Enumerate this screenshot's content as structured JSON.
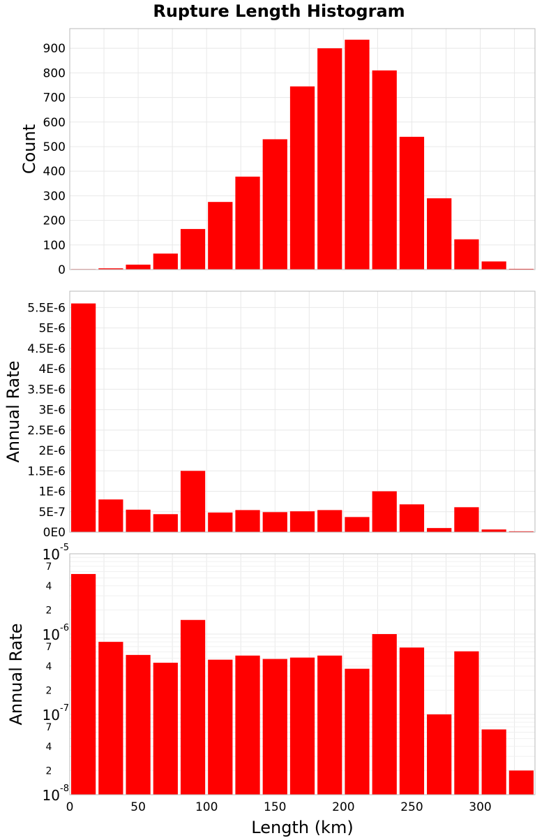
{
  "title": "Rupture Length Histogram",
  "colors": {
    "bar": "#ff0000",
    "frame": "#b8b8b8",
    "grid": "#e8e8e8"
  },
  "chart_data": [
    {
      "type": "bar",
      "title": "Rupture Length Histogram",
      "xlabel": "",
      "ylabel": "Count",
      "xlim": [
        0,
        340
      ],
      "ylim": [
        0,
        980
      ],
      "bin_width": 20,
      "x": [
        10,
        30,
        50,
        70,
        90,
        110,
        130,
        150,
        170,
        190,
        210,
        230,
        250,
        270,
        290,
        310,
        330
      ],
      "values": [
        2,
        5,
        20,
        65,
        165,
        275,
        378,
        530,
        745,
        900,
        935,
        810,
        540,
        290,
        123,
        33,
        3
      ],
      "y_ticks": [
        0,
        100,
        200,
        300,
        400,
        500,
        600,
        700,
        800,
        900
      ],
      "y_tick_labels": [
        "0",
        "100",
        "200",
        "300",
        "400",
        "500",
        "600",
        "700",
        "800",
        "900"
      ],
      "grid": true
    },
    {
      "type": "bar",
      "xlabel": "",
      "ylabel": "Annual Rate",
      "xlim": [
        0,
        340
      ],
      "ylim": [
        0,
        5.9e-06
      ],
      "bin_width": 20,
      "x": [
        10,
        30,
        50,
        70,
        90,
        110,
        130,
        150,
        170,
        190,
        210,
        230,
        250,
        270,
        290,
        310,
        330
      ],
      "values": [
        5.6e-06,
        8e-07,
        5.5e-07,
        4.4e-07,
        1.5e-06,
        4.8e-07,
        5.4e-07,
        4.9e-07,
        5.1e-07,
        5.4e-07,
        3.7e-07,
        1e-06,
        6.8e-07,
        1e-07,
        6.1e-07,
        6.5e-08,
        2e-08
      ],
      "y_ticks": [
        0,
        5e-07,
        1e-06,
        1.5e-06,
        2e-06,
        2.5e-06,
        3e-06,
        3.5e-06,
        4e-06,
        4.5e-06,
        5e-06,
        5.5e-06
      ],
      "y_tick_labels": [
        "0E0",
        "5E-7",
        "1E-6",
        "1.5E-6",
        "2E-6",
        "2.5E-6",
        "3E-6",
        "3.5E-6",
        "4E-6",
        "4.5E-6",
        "5E-6",
        "5.5E-6"
      ],
      "grid": true
    },
    {
      "type": "bar",
      "xlabel": "Length (km)",
      "ylabel": "Annual Rate",
      "y_scale": "log",
      "xlim": [
        0,
        340
      ],
      "ylim": [
        1e-08,
        1e-05
      ],
      "bin_width": 20,
      "x": [
        10,
        30,
        50,
        70,
        90,
        110,
        130,
        150,
        170,
        190,
        210,
        230,
        250,
        270,
        290,
        310,
        330
      ],
      "values": [
        5.6e-06,
        8e-07,
        5.5e-07,
        4.4e-07,
        1.5e-06,
        4.8e-07,
        5.4e-07,
        4.9e-07,
        5.1e-07,
        5.4e-07,
        3.7e-07,
        1e-06,
        6.8e-07,
        1e-07,
        6.1e-07,
        6.5e-08,
        2e-08
      ],
      "decade_ticks": [
        {
          "value": 1e-05,
          "base": "10",
          "exp": "-5"
        },
        {
          "value": 1e-06,
          "base": "10",
          "exp": "-6"
        },
        {
          "value": 1e-07,
          "base": "10",
          "exp": "-7"
        },
        {
          "value": 1e-08,
          "base": "10",
          "exp": "-8"
        }
      ],
      "minor_labels": [
        {
          "value": 7e-06,
          "label": "7"
        },
        {
          "value": 4e-06,
          "label": "4"
        },
        {
          "value": 2e-06,
          "label": "2"
        },
        {
          "value": 7e-07,
          "label": "7"
        },
        {
          "value": 4e-07,
          "label": "4"
        },
        {
          "value": 2e-07,
          "label": "2"
        },
        {
          "value": 7e-08,
          "label": "7"
        },
        {
          "value": 4e-08,
          "label": "4"
        },
        {
          "value": 2e-08,
          "label": "2"
        }
      ],
      "x_ticks": [
        0,
        50,
        100,
        150,
        200,
        250,
        300
      ],
      "x_tick_labels": [
        "0",
        "50",
        "100",
        "150",
        "200",
        "250",
        "300"
      ],
      "grid": true
    }
  ]
}
